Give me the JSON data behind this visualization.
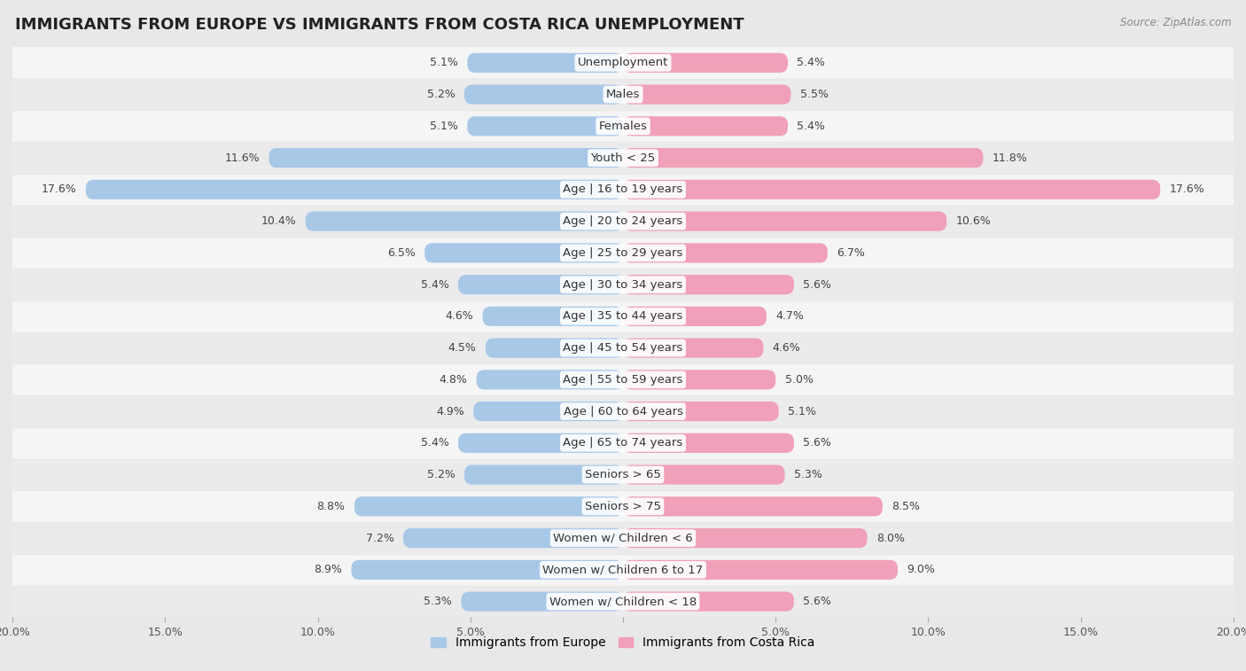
{
  "title": "IMMIGRANTS FROM EUROPE VS IMMIGRANTS FROM COSTA RICA UNEMPLOYMENT",
  "source": "Source: ZipAtlas.com",
  "categories": [
    "Unemployment",
    "Males",
    "Females",
    "Youth < 25",
    "Age | 16 to 19 years",
    "Age | 20 to 24 years",
    "Age | 25 to 29 years",
    "Age | 30 to 34 years",
    "Age | 35 to 44 years",
    "Age | 45 to 54 years",
    "Age | 55 to 59 years",
    "Age | 60 to 64 years",
    "Age | 65 to 74 years",
    "Seniors > 65",
    "Seniors > 75",
    "Women w/ Children < 6",
    "Women w/ Children 6 to 17",
    "Women w/ Children < 18"
  ],
  "europe_values": [
    5.1,
    5.2,
    5.1,
    11.6,
    17.6,
    10.4,
    6.5,
    5.4,
    4.6,
    4.5,
    4.8,
    4.9,
    5.4,
    5.2,
    8.8,
    7.2,
    8.9,
    5.3
  ],
  "costa_rica_values": [
    5.4,
    5.5,
    5.4,
    11.8,
    17.6,
    10.6,
    6.7,
    5.6,
    4.7,
    4.6,
    5.0,
    5.1,
    5.6,
    5.3,
    8.5,
    8.0,
    9.0,
    5.6
  ],
  "europe_color": "#a8c8e8",
  "costa_rica_color": "#f0a0b8",
  "background_color": "#e8e8e8",
  "row_color_odd": "#f5f5f5",
  "row_color_even": "#ebebeb",
  "axis_limit": 20.0,
  "bar_height": 0.62,
  "label_fontsize": 9.5,
  "title_fontsize": 13,
  "value_fontsize": 9,
  "legend_europe": "Immigrants from Europe",
  "legend_costa_rica": "Immigrants from Costa Rica"
}
